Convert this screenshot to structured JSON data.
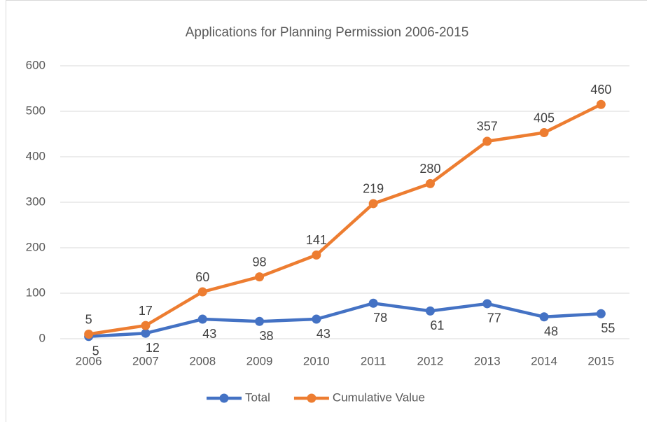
{
  "chart_data": {
    "type": "line",
    "stacked": true,
    "title": "Applications for Planning Permission 2006-2015",
    "categories": [
      "2006",
      "2007",
      "2008",
      "2009",
      "2010",
      "2011",
      "2012",
      "2013",
      "2014",
      "2015"
    ],
    "series": [
      {
        "name": "Total",
        "color": "#4472c4",
        "values": [
          5,
          12,
          43,
          38,
          43,
          78,
          61,
          77,
          48,
          55
        ]
      },
      {
        "name": "Cumulative Value",
        "color": "#ed7d31",
        "values": [
          5,
          17,
          60,
          98,
          141,
          219,
          280,
          357,
          405,
          460
        ]
      }
    ],
    "ylim": [
      0,
      600
    ],
    "yticks": [
      0,
      100,
      200,
      300,
      400,
      500,
      600
    ],
    "grid": true,
    "legend": "bottom"
  }
}
